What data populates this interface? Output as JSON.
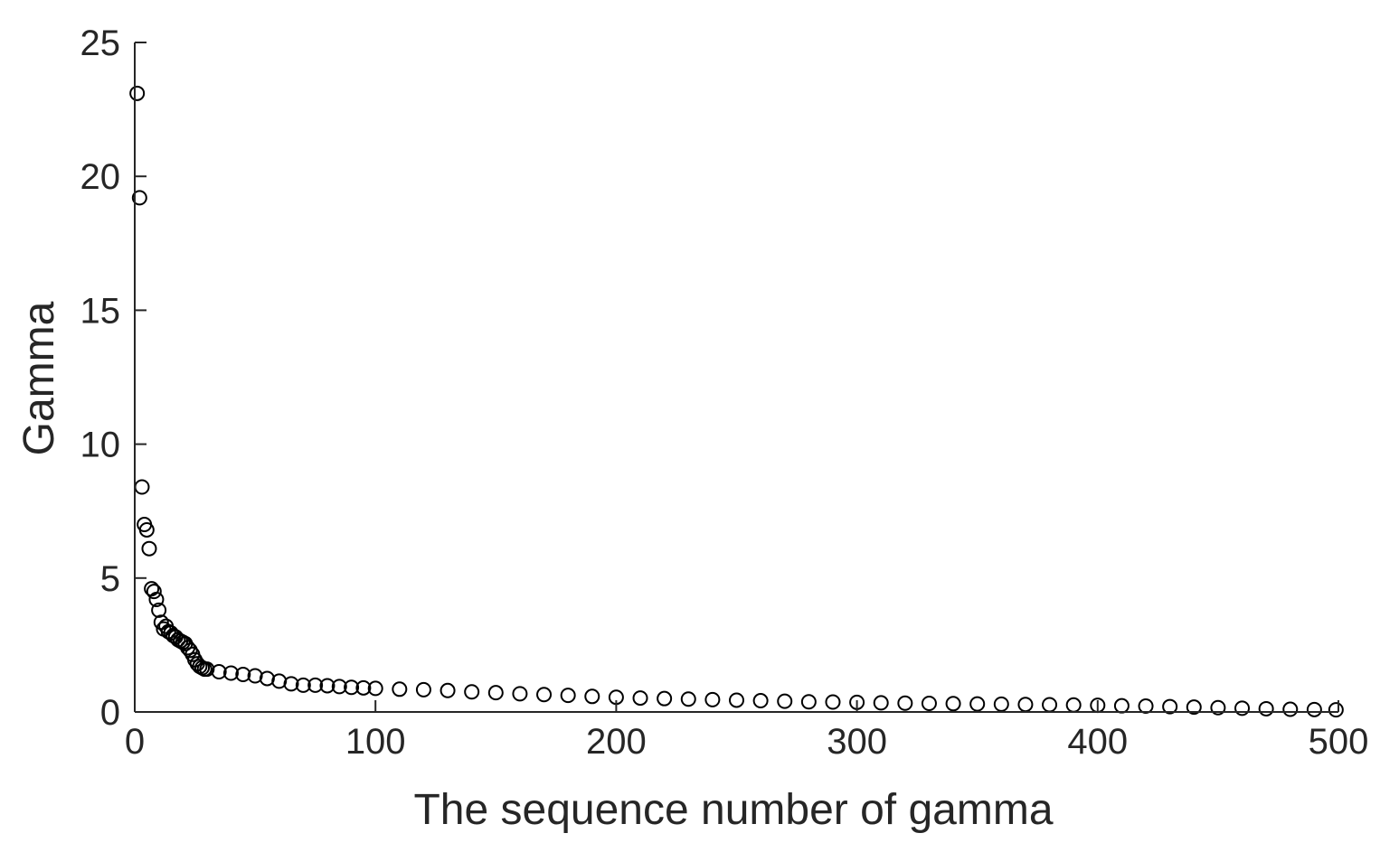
{
  "chart_data": {
    "type": "scatter",
    "title": "",
    "xlabel": "The sequence number of gamma",
    "ylabel": "Gamma",
    "xlim": [
      0,
      500
    ],
    "ylim": [
      0,
      25
    ],
    "xticks": [
      0,
      100,
      200,
      300,
      400,
      500
    ],
    "yticks": [
      0,
      5,
      10,
      15,
      20,
      25
    ],
    "xtick_labels": [
      "0",
      "100",
      "200",
      "300",
      "400",
      "500"
    ],
    "ytick_labels": [
      "0",
      "5",
      "10",
      "15",
      "20",
      "25"
    ],
    "grid": false,
    "marker": "open-circle",
    "marker_color": "#000000",
    "series": [
      {
        "x": [
          1,
          2,
          3,
          4,
          5,
          6,
          7,
          8,
          9,
          10,
          11,
          12,
          13,
          14,
          15,
          16,
          17,
          18,
          19,
          20,
          21,
          22,
          23,
          24,
          25,
          26,
          27,
          28,
          29,
          30,
          35,
          40,
          45,
          50,
          55,
          60,
          65,
          70,
          75,
          80,
          85,
          90,
          95,
          100,
          110,
          120,
          130,
          140,
          150,
          160,
          170,
          180,
          190,
          200,
          210,
          220,
          230,
          240,
          250,
          260,
          270,
          280,
          290,
          300,
          310,
          320,
          330,
          340,
          350,
          360,
          370,
          380,
          390,
          400,
          410,
          420,
          430,
          440,
          450,
          460,
          470,
          480,
          490,
          499
        ],
        "values": [
          23.1,
          19.2,
          8.4,
          7.0,
          6.8,
          6.1,
          4.6,
          4.5,
          4.2,
          3.8,
          3.35,
          3.1,
          3.2,
          3.0,
          2.95,
          2.85,
          2.8,
          2.7,
          2.65,
          2.6,
          2.55,
          2.4,
          2.3,
          2.15,
          1.95,
          1.8,
          1.7,
          1.65,
          1.6,
          1.6,
          1.5,
          1.45,
          1.4,
          1.35,
          1.25,
          1.15,
          1.05,
          1.0,
          1.0,
          0.98,
          0.95,
          0.92,
          0.9,
          0.88,
          0.85,
          0.83,
          0.8,
          0.75,
          0.72,
          0.68,
          0.65,
          0.62,
          0.58,
          0.55,
          0.52,
          0.5,
          0.48,
          0.46,
          0.44,
          0.42,
          0.4,
          0.38,
          0.37,
          0.36,
          0.34,
          0.33,
          0.32,
          0.31,
          0.3,
          0.29,
          0.28,
          0.27,
          0.26,
          0.25,
          0.23,
          0.22,
          0.2,
          0.18,
          0.16,
          0.14,
          0.12,
          0.1,
          0.09,
          0.08
        ]
      }
    ]
  }
}
